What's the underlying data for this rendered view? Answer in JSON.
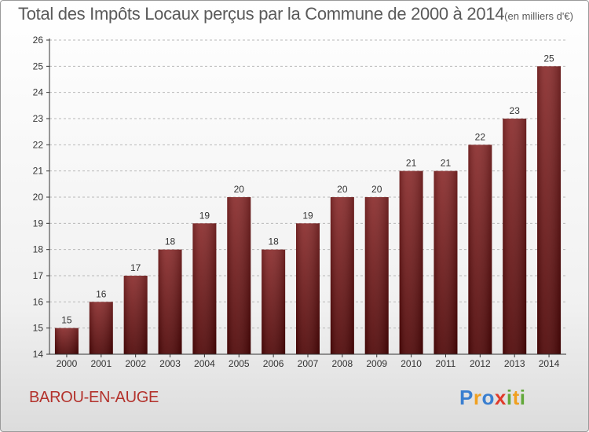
{
  "chart_data": {
    "type": "bar",
    "title": "Total des Impôts Locaux perçus par la Commune de 2000 à 2014",
    "unit_label": "(en milliers d'€)",
    "categories": [
      "2000",
      "2001",
      "2002",
      "2003",
      "2004",
      "2005",
      "2006",
      "2007",
      "2008",
      "2009",
      "2010",
      "2011",
      "2012",
      "2013",
      "2014"
    ],
    "values": [
      15,
      16,
      17,
      18,
      19,
      20,
      18,
      19,
      20,
      20,
      21,
      21,
      22,
      23,
      25
    ],
    "ylim": [
      14,
      26
    ],
    "yticks": [
      14,
      15,
      16,
      17,
      18,
      19,
      20,
      21,
      22,
      23,
      24,
      25,
      26
    ],
    "xlabel": "",
    "ylabel": "",
    "bar_color": "#7a1a1a"
  },
  "commune": "BAROU-EN-AUGE",
  "logo": {
    "letters": [
      "P",
      "r",
      "o",
      "x",
      "i",
      "t",
      "i"
    ],
    "colors": [
      "#3a7fd0",
      "#f0a020",
      "#3a7fd0",
      "#e03a2a",
      "#62a83a",
      "#f0a020",
      "#62a83a"
    ]
  }
}
